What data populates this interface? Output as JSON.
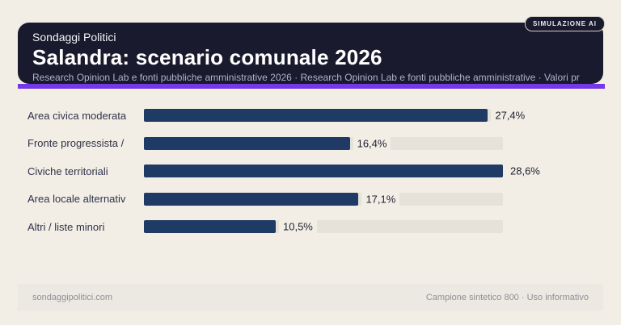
{
  "header": {
    "badge": "SIMULAZIONE AI",
    "kicker": "Sondaggi Politici",
    "title": "Salandra: scenario comunale 2026",
    "subtitle": "Research Opinion Lab e fonti pubbliche amministrative 2026 · Research Opinion Lab e fonti pubbliche amministrative · Valori pr"
  },
  "chart_data": {
    "type": "bar",
    "orientation": "horizontal",
    "title": "Salandra: scenario comunale 2026",
    "categories": [
      "Area civica moderata",
      "Fronte progressista /",
      "Civiche territoriali",
      "Area locale alternativ",
      "Altri / liste minori"
    ],
    "values": [
      27.4,
      16.4,
      28.6,
      17.1,
      10.5
    ],
    "value_labels": [
      "27,4%",
      "16,4%",
      "28,6%",
      "17,1%",
      "10,5%"
    ],
    "unit": "%",
    "xlim": [
      0,
      28.6
    ],
    "grid": false,
    "legend": false,
    "bar_color": "#1f3a64",
    "track_color": "#e6e2da"
  },
  "footer": {
    "left": "sondaggipolitici.com",
    "right": "Campione sintetico 800 · Uso informativo"
  },
  "colors": {
    "page_bg": "#f2ede5",
    "card_bg": "#1a1a2e",
    "accent": "#7438e8",
    "bar": "#1f3a64",
    "track": "#e6e2da",
    "value_text": "#1d2130"
  }
}
